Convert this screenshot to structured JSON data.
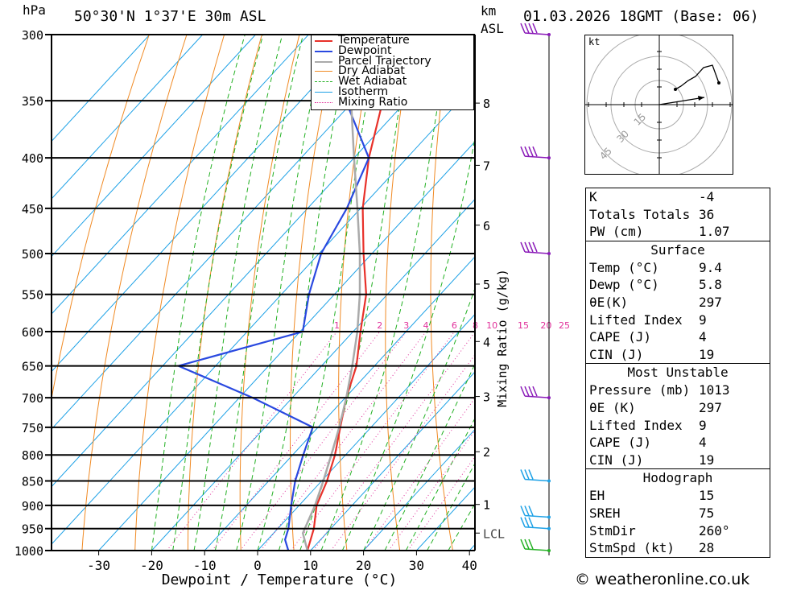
{
  "header": {
    "pressure_unit": "hPa",
    "location": "50°30'N  1°37'E  30m  ASL",
    "height_unit": "km",
    "height_unit2": "ASL",
    "datetime": "01.03.2026  18GMT  (Base: 06)"
  },
  "chart_data": {
    "type": "skew-t",
    "xlabel": "Dewpoint / Temperature (°C)",
    "ylabel_right": "Mixing Ratio (g/kg)",
    "x_ticks": [
      -30,
      -20,
      -10,
      0,
      10,
      20,
      30,
      40
    ],
    "pressure_levels": [
      300,
      350,
      400,
      450,
      500,
      550,
      600,
      650,
      700,
      750,
      800,
      850,
      900,
      950,
      1000
    ],
    "km_ticks": [
      {
        "label": "8",
        "p": 352
      },
      {
        "label": "7",
        "p": 407
      },
      {
        "label": "6",
        "p": 468
      },
      {
        "label": "5",
        "p": 537
      },
      {
        "label": "4",
        "p": 614
      },
      {
        "label": "3",
        "p": 698
      },
      {
        "label": "2",
        "p": 794
      },
      {
        "label": "1",
        "p": 898
      },
      {
        "label": "LCL",
        "p": 960
      }
    ],
    "mixing_ratio_labels": [
      "1",
      "2",
      "3",
      "4",
      "6",
      "8",
      "10",
      "15",
      "20",
      "25"
    ],
    "legend": [
      "Temperature",
      "Dewpoint",
      "Parcel Trajectory",
      "Dry Adiabat",
      "Wet Adiabat",
      "Isotherm",
      "Mixing Ratio"
    ],
    "series": [
      {
        "name": "Temperature",
        "color": "#e8312a",
        "points": [
          [
            1000,
            9.4
          ],
          [
            950,
            6.8
          ],
          [
            900,
            3.3
          ],
          [
            850,
            1.0
          ],
          [
            800,
            -2.0
          ],
          [
            750,
            -5.8
          ],
          [
            700,
            -9.8
          ],
          [
            650,
            -13.4
          ],
          [
            600,
            -18.6
          ],
          [
            550,
            -24.0
          ],
          [
            500,
            -31.6
          ],
          [
            450,
            -39.6
          ],
          [
            400,
            -47.2
          ],
          [
            350,
            -54.5
          ],
          [
            300,
            -61.5
          ]
        ]
      },
      {
        "name": "Dewpoint",
        "color": "#2a49e0",
        "points": [
          [
            1000,
            5.8
          ],
          [
            975,
            3.3
          ],
          [
            950,
            2.0
          ],
          [
            900,
            -1.5
          ],
          [
            850,
            -5.0
          ],
          [
            800,
            -8.0
          ],
          [
            750,
            -11.0
          ],
          [
            700,
            -27.5
          ],
          [
            650,
            -47.0
          ],
          [
            600,
            -29.5
          ],
          [
            550,
            -34.8
          ],
          [
            500,
            -39.6
          ],
          [
            450,
            -42.6
          ],
          [
            400,
            -47.2
          ],
          [
            350,
            -61.5
          ],
          [
            300,
            -66.0
          ]
        ]
      },
      {
        "name": "Parcel Trajectory",
        "color": "#aaaaaa",
        "points": [
          [
            1000,
            9.4
          ],
          [
            960,
            5.5
          ],
          [
            900,
            3.0
          ],
          [
            850,
            0.3
          ],
          [
            800,
            -2.7
          ],
          [
            750,
            -6.0
          ],
          [
            700,
            -9.8
          ],
          [
            650,
            -14.2
          ],
          [
            600,
            -19.2
          ],
          [
            550,
            -25.2
          ],
          [
            500,
            -32.3
          ],
          [
            450,
            -40.6
          ],
          [
            400,
            -50.0
          ],
          [
            350,
            -60.5
          ],
          [
            300,
            -72.5
          ]
        ]
      }
    ]
  },
  "hodograph": {
    "unit": "kt",
    "rings": [
      "15",
      "30",
      "45"
    ]
  },
  "indices": {
    "top": [
      {
        "label": "K",
        "value": "-4"
      },
      {
        "label": "Totals Totals",
        "value": "36"
      },
      {
        "label": "PW (cm)",
        "value": "1.07"
      }
    ],
    "surface_title": "Surface",
    "surface": [
      {
        "label": "Temp (°C)",
        "value": "9.4"
      },
      {
        "label": "Dewp (°C)",
        "value": "5.8"
      },
      {
        "label": "θE(K)",
        "value": "297"
      },
      {
        "label": "Lifted Index",
        "value": "9"
      },
      {
        "label": "CAPE (J)",
        "value": "4"
      },
      {
        "label": "CIN (J)",
        "value": "19"
      }
    ],
    "mu_title": "Most Unstable",
    "mu": [
      {
        "label": "Pressure (mb)",
        "value": "1013"
      },
      {
        "label": "θE (K)",
        "value": "297"
      },
      {
        "label": "Lifted Index",
        "value": "9"
      },
      {
        "label": "CAPE (J)",
        "value": "4"
      },
      {
        "label": "CIN (J)",
        "value": "19"
      }
    ],
    "hodo_title": "Hodograph",
    "hodo": [
      {
        "label": "EH",
        "value": "15"
      },
      {
        "label": "SREH",
        "value": "75"
      },
      {
        "label": "StmDir",
        "value": "260°"
      },
      {
        "label": "StmSpd (kt)",
        "value": "28"
      }
    ]
  },
  "footer": {
    "copyright": "© weatheronline.co.uk"
  }
}
